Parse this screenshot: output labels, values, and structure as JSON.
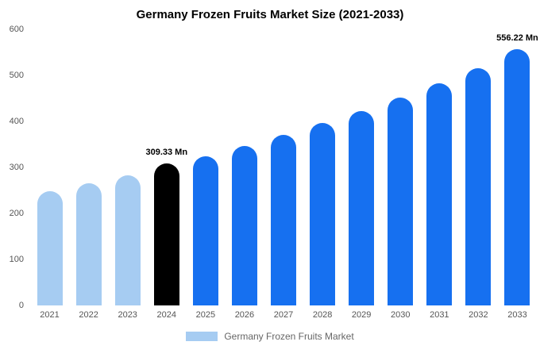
{
  "title": "Germany Frozen Fruits Market Size (2021-2033)",
  "legend": {
    "label": "Germany Frozen Fruits Market",
    "swatch_color": "#a6ccf2"
  },
  "colors": {
    "historical_bar": "#a6ccf2",
    "highlight_bar": "#000000",
    "forecast_bar": "#1670f0",
    "axis_text": "#555555",
    "legend_text": "#666666",
    "background": "#ffffff"
  },
  "chart_data": {
    "type": "bar",
    "title": "Germany Frozen Fruits Market Size (2021-2033)",
    "categories": [
      "2021",
      "2022",
      "2023",
      "2024",
      "2025",
      "2026",
      "2027",
      "2028",
      "2029",
      "2030",
      "2031",
      "2032",
      "2033"
    ],
    "values": [
      248,
      265,
      283,
      309.33,
      325,
      347,
      370,
      396,
      422,
      451,
      482,
      516,
      556.22
    ],
    "colors": [
      "#a6ccf2",
      "#a6ccf2",
      "#a6ccf2",
      "#000000",
      "#1670f0",
      "#1670f0",
      "#1670f0",
      "#1670f0",
      "#1670f0",
      "#1670f0",
      "#1670f0",
      "#1670f0",
      "#1670f0"
    ],
    "xlabel": "",
    "ylabel": "",
    "ylim": [
      0,
      600
    ],
    "yticks": [
      0,
      100,
      200,
      300,
      400,
      500,
      600
    ],
    "grid": false,
    "legend_position": "bottom",
    "annotations": [
      {
        "category": "2024",
        "text": "309.33 Mn"
      },
      {
        "category": "2033",
        "text": "556.22 Mn"
      }
    ]
  }
}
